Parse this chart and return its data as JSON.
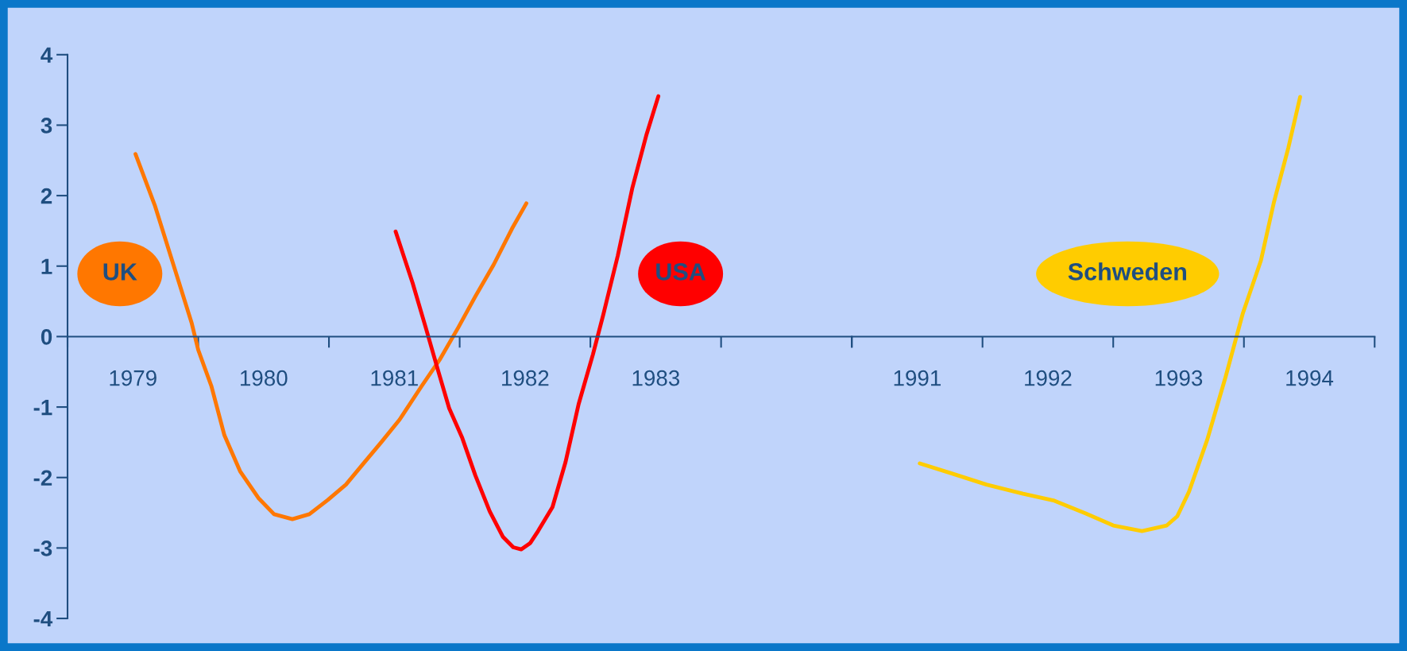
{
  "chart_data": [
    {
      "type": "line",
      "xlim": [
        1978.5,
        1984.5
      ],
      "ylim": [
        -4,
        4
      ],
      "xticks": [
        {
          "value": 1978.5,
          "label": null
        },
        1979,
        {
          "value": 1979.5,
          "label": null
        },
        1980,
        {
          "value": 1980.5,
          "label": null
        },
        1981,
        {
          "value": 1981.5,
          "label": null
        },
        1982,
        {
          "value": 1982.5,
          "label": null
        },
        1983,
        {
          "value": 1983.5,
          "label": null
        },
        {
          "value": 1984.5,
          "label": null
        }
      ],
      "yticks": [
        -4,
        -3,
        -2,
        -1,
        0,
        1,
        2,
        3,
        4
      ],
      "marker": "none",
      "line_style": "solid",
      "series": [
        {
          "name": "UK",
          "color": "#ff7700",
          "x": [
            1979.02,
            1979.17,
            1979.32,
            1979.45,
            1979.5,
            1979.6,
            1979.7,
            1979.82,
            1979.96,
            1980.08,
            1980.22,
            1980.35,
            1980.49,
            1980.63,
            1980.76,
            1980.9,
            1981.04,
            1981.21,
            1981.35,
            1981.49,
            1981.62,
            1981.76,
            1981.9,
            1982.01
          ],
          "values": [
            2.59,
            1.85,
            0.96,
            0.19,
            -0.19,
            -0.7,
            -1.4,
            -1.91,
            -2.29,
            -2.52,
            -2.59,
            -2.52,
            -2.32,
            -2.1,
            -1.81,
            -1.5,
            -1.18,
            -0.7,
            -0.32,
            0.13,
            0.57,
            1.02,
            1.53,
            1.89
          ]
        },
        {
          "name": "USA",
          "color": "#ff0000",
          "x": [
            1981.01,
            1981.14,
            1981.24,
            1981.33,
            1981.42,
            1981.52,
            1981.62,
            1981.73,
            1981.83,
            1981.91,
            1981.97,
            1982.04,
            1982.1,
            1982.21,
            1982.31,
            1982.41,
            1982.52,
            1982.6,
            1982.71,
            1982.82,
            1982.93,
            1983.02
          ],
          "values": [
            1.49,
            0.76,
            0.13,
            -0.45,
            -1.02,
            -1.44,
            -1.97,
            -2.48,
            -2.84,
            -2.99,
            -3.02,
            -2.93,
            -2.76,
            -2.42,
            -1.78,
            -0.96,
            -0.25,
            0.32,
            1.15,
            2.1,
            2.87,
            3.41
          ]
        }
      ]
    },
    {
      "type": "line",
      "xlim": [
        1990.5,
        1994.5
      ],
      "ylim": [
        -4,
        4
      ],
      "tick_labels": "x",
      "xticks": [
        {
          "value": 1990.5,
          "label": null
        },
        1991,
        {
          "value": 1991.5,
          "label": null
        },
        1992,
        {
          "value": 1992.5,
          "label": null
        },
        1993,
        {
          "value": 1993.5,
          "label": null
        },
        1994,
        {
          "value": 1994.5,
          "label": null
        }
      ],
      "yticks": [
        -4,
        -3,
        -2,
        -1,
        0,
        1,
        2,
        3,
        4
      ],
      "marker": "none",
      "line_style": "solid",
      "series": [
        {
          "name": "Schweden",
          "color": "#ffcc00",
          "x": [
            1991.02,
            1991.26,
            1991.53,
            1991.81,
            1992.05,
            1992.29,
            1992.5,
            1992.72,
            1992.91,
            1992.99,
            1993.08,
            1993.22,
            1993.36,
            1993.49,
            1993.63,
            1993.73,
            1993.84,
            1993.93
          ],
          "values": [
            -1.8,
            -1.94,
            -2.1,
            -2.23,
            -2.33,
            -2.51,
            -2.68,
            -2.76,
            -2.68,
            -2.55,
            -2.2,
            -1.46,
            -0.57,
            0.32,
            1.08,
            1.91,
            2.68,
            3.4
          ]
        }
      ]
    }
  ]
}
